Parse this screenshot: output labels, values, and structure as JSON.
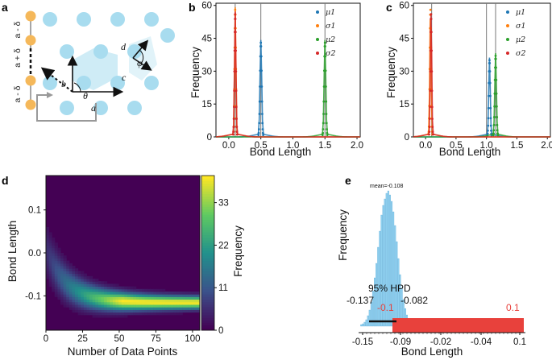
{
  "panel_labels": {
    "a": "a",
    "b": "b",
    "c": "c",
    "d": "d",
    "e": "e"
  },
  "panel_a": {
    "chain_labels": [
      "a - δ",
      "a + δ",
      "a - δ"
    ],
    "vector_labels": {
      "a": "a",
      "b": "b",
      "c": "c",
      "d": "d",
      "theta": "θ",
      "phi": "φ"
    },
    "colors": {
      "lattice": "#a8dcef",
      "atoms": "#f5b85a",
      "arrow": "#999999"
    }
  },
  "chart_data": [
    {
      "panel": "b",
      "type": "scatter",
      "xlabel": "Bond Length",
      "ylabel": "Frequency",
      "xlim": [
        -0.2,
        2.05
      ],
      "ylim": [
        0,
        61
      ],
      "xticks": [
        "0.0",
        "0.5",
        "1.0",
        "1.5",
        "2.0"
      ],
      "yticks": [
        "0",
        "15",
        "30",
        "45",
        "60"
      ],
      "legend_position": "top-right",
      "vlines": [
        0.1,
        0.5,
        1.5
      ],
      "series": [
        {
          "name": "μ1",
          "color": "#1f77b4",
          "peak_x": 0.5,
          "peak_y": 43,
          "width": 0.013
        },
        {
          "name": "σ1",
          "color": "#ff7f0e",
          "peak_x": 0.1,
          "peak_y": 58,
          "width": 0.01
        },
        {
          "name": "μ2",
          "color": "#2ca02c",
          "peak_x": 1.5,
          "peak_y": 43,
          "width": 0.013
        },
        {
          "name": "σ2",
          "color": "#d62728",
          "peak_x": 0.1,
          "peak_y": 56,
          "width": 0.011
        }
      ]
    },
    {
      "panel": "c",
      "type": "scatter",
      "xlabel": "Bond Length",
      "ylabel": "Frequency",
      "xlim": [
        -0.2,
        2.05
      ],
      "ylim": [
        0,
        61
      ],
      "xticks": [
        "0.0",
        "0.5",
        "1.0",
        "1.5",
        "2.0"
      ],
      "yticks": [
        "0",
        "15",
        "30",
        "45",
        "60"
      ],
      "legend_position": "top-right",
      "vlines": [
        0.1,
        1.0,
        1.15
      ],
      "series": [
        {
          "name": "μ1",
          "color": "#1f77b4",
          "peak_x": 1.05,
          "peak_y": 35,
          "width": 0.012
        },
        {
          "name": "σ1",
          "color": "#ff7f0e",
          "peak_x": 0.08,
          "peak_y": 58,
          "width": 0.011
        },
        {
          "name": "μ2",
          "color": "#2ca02c",
          "peak_x": 1.15,
          "peak_y": 37,
          "width": 0.013
        },
        {
          "name": "σ2",
          "color": "#d62728",
          "peak_x": 0.09,
          "peak_y": 56,
          "width": 0.011
        }
      ]
    },
    {
      "panel": "d",
      "type": "heatmap",
      "xlabel": "Number of Data Points",
      "ylabel": "Bond Length",
      "xlim": [
        0,
        105
      ],
      "ylim": [
        -0.18,
        0.18
      ],
      "xticks": [
        "0",
        "25",
        "50",
        "75",
        "100"
      ],
      "yticks": [
        "0.1",
        "0.0",
        "-0.1"
      ],
      "colorbar_label": "Frequency",
      "colorbar_ticks": [
        "0",
        "11",
        "22",
        "33"
      ],
      "colorbar_max": 40
    },
    {
      "panel": "e",
      "type": "bar",
      "xlabel": "Bond Length",
      "ylabel": "Frequency",
      "xticks": [
        "-0.15",
        "-0.09",
        "-0.02",
        "-0.04",
        "0.1"
      ],
      "mean_label": "mean=-0.108",
      "hpd_label": "95% HPD",
      "hpd_low": "-0.137",
      "hpd_high": "-0.082",
      "reference_labels": [
        "-0.1",
        "0.1"
      ],
      "histogram_color": "#8fd0ef",
      "range_color": "#e8413c"
    }
  ]
}
